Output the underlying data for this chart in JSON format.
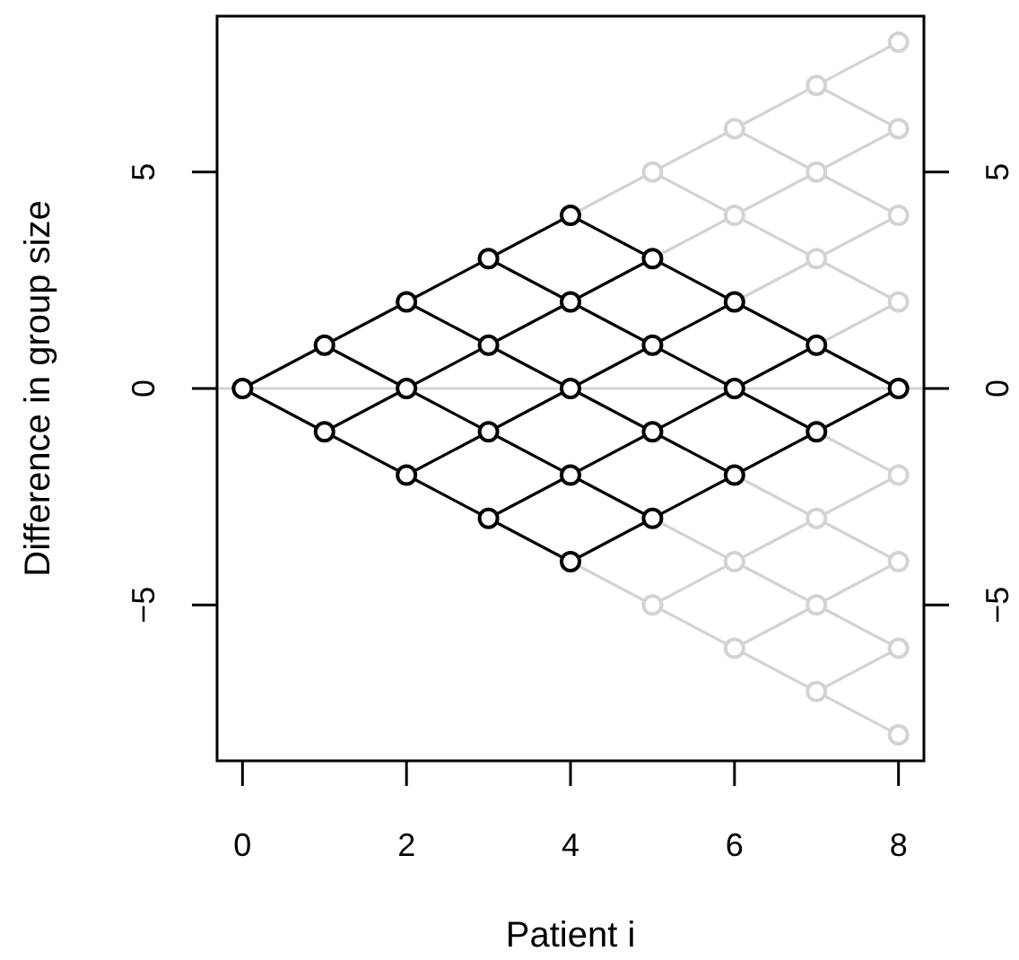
{
  "chart_data": {
    "type": "line",
    "xlabel": "Patient i",
    "ylabel": "Difference in group size",
    "xlim": [
      -0.31,
      8.31
    ],
    "xticks": [
      0,
      2,
      4,
      6,
      8
    ],
    "ylim": [
      -8.6,
      8.6
    ],
    "yticks": [
      -5,
      0,
      5
    ],
    "y2lim": [
      -8.6,
      8.6
    ],
    "y2ticks": [
      -5,
      0,
      5
    ],
    "ref_lines": [
      {
        "axis": "y",
        "value": 0,
        "color": "#d3d3d3"
      }
    ],
    "series": [
      {
        "type": "line",
        "color": "#d3d3d3",
        "marker": "none",
        "x": [
          4,
          5,
          6,
          7,
          8
        ],
        "values": [
          4,
          5,
          6,
          7,
          8
        ]
      },
      {
        "type": "line",
        "color": "#d3d3d3",
        "marker": "none",
        "x": [
          5,
          6,
          7,
          8
        ],
        "values": [
          3,
          4,
          5,
          6
        ]
      },
      {
        "type": "line",
        "color": "#d3d3d3",
        "marker": "none",
        "x": [
          6,
          7,
          8
        ],
        "values": [
          2,
          3,
          4
        ]
      },
      {
        "type": "line",
        "color": "#d3d3d3",
        "marker": "none",
        "x": [
          7,
          8
        ],
        "values": [
          1,
          2
        ]
      },
      {
        "type": "line",
        "color": "#d3d3d3",
        "marker": "none",
        "x": [
          5,
          6,
          7,
          8
        ],
        "values": [
          -5,
          -4,
          -3,
          -2
        ]
      },
      {
        "type": "line",
        "color": "#d3d3d3",
        "marker": "none",
        "x": [
          6,
          7,
          8
        ],
        "values": [
          -6,
          -5,
          -4
        ]
      },
      {
        "type": "line",
        "color": "#d3d3d3",
        "marker": "none",
        "x": [
          7,
          8
        ],
        "values": [
          -7,
          -6
        ]
      },
      {
        "type": "line",
        "color": "#d3d3d3",
        "marker": "none",
        "x": [
          4,
          5,
          6,
          7,
          8
        ],
        "values": [
          -4,
          -5,
          -6,
          -7,
          -8
        ]
      },
      {
        "type": "line",
        "color": "#d3d3d3",
        "marker": "none",
        "x": [
          5,
          6,
          7,
          8
        ],
        "values": [
          -3,
          -4,
          -5,
          -6
        ]
      },
      {
        "type": "line",
        "color": "#d3d3d3",
        "marker": "none",
        "x": [
          6,
          7,
          8
        ],
        "values": [
          -2,
          -3,
          -4
        ]
      },
      {
        "type": "line",
        "color": "#d3d3d3",
        "marker": "none",
        "x": [
          7,
          8
        ],
        "values": [
          -1,
          -2
        ]
      },
      {
        "type": "line",
        "color": "#d3d3d3",
        "marker": "none",
        "x": [
          5,
          6,
          7,
          8
        ],
        "values": [
          5,
          4,
          3,
          2
        ]
      },
      {
        "type": "line",
        "color": "#d3d3d3",
        "marker": "none",
        "x": [
          6,
          7,
          8
        ],
        "values": [
          6,
          5,
          4
        ]
      },
      {
        "type": "line",
        "color": "#d3d3d3",
        "marker": "none",
        "x": [
          7,
          8
        ],
        "values": [
          7,
          6
        ]
      },
      {
        "type": "line",
        "color": "#000000",
        "marker": "none",
        "x": [
          0,
          1,
          2,
          3,
          4
        ],
        "values": [
          0,
          1,
          2,
          3,
          4
        ]
      },
      {
        "type": "line",
        "color": "#000000",
        "marker": "none",
        "x": [
          1,
          2,
          3,
          4,
          5
        ],
        "values": [
          -1,
          0,
          1,
          2,
          3
        ]
      },
      {
        "type": "line",
        "color": "#000000",
        "marker": "none",
        "x": [
          2,
          3,
          4,
          5,
          6
        ],
        "values": [
          -2,
          -1,
          0,
          1,
          2
        ]
      },
      {
        "type": "line",
        "color": "#000000",
        "marker": "none",
        "x": [
          3,
          4,
          5,
          6,
          7
        ],
        "values": [
          -3,
          -2,
          -1,
          0,
          1
        ]
      },
      {
        "type": "line",
        "color": "#000000",
        "marker": "none",
        "x": [
          4,
          5,
          6,
          7,
          8
        ],
        "values": [
          -4,
          -3,
          -2,
          -1,
          0
        ]
      },
      {
        "type": "line",
        "color": "#000000",
        "marker": "none",
        "x": [
          0,
          1,
          2,
          3,
          4
        ],
        "values": [
          0,
          -1,
          -2,
          -3,
          -4
        ]
      },
      {
        "type": "line",
        "color": "#000000",
        "marker": "none",
        "x": [
          1,
          2,
          3,
          4,
          5
        ],
        "values": [
          1,
          0,
          -1,
          -2,
          -3
        ]
      },
      {
        "type": "line",
        "color": "#000000",
        "marker": "none",
        "x": [
          2,
          3,
          4,
          5,
          6
        ],
        "values": [
          2,
          1,
          0,
          -1,
          -2
        ]
      },
      {
        "type": "line",
        "color": "#000000",
        "marker": "none",
        "x": [
          3,
          4,
          5,
          6,
          7
        ],
        "values": [
          3,
          2,
          1,
          0,
          -1
        ]
      },
      {
        "type": "line",
        "color": "#000000",
        "marker": "none",
        "x": [
          4,
          5,
          6,
          7,
          8
        ],
        "values": [
          4,
          3,
          2,
          1,
          0
        ]
      },
      {
        "type": "scatter",
        "color": "#d3d3d3",
        "marker": "circle",
        "x": [
          5,
          5,
          6,
          6,
          6,
          6,
          7,
          7,
          7,
          7,
          7,
          7,
          8,
          8,
          8,
          8,
          8,
          8,
          8,
          8
        ],
        "values": [
          5,
          -5,
          4,
          -4,
          6,
          -6,
          3,
          -3,
          5,
          -5,
          7,
          -7,
          2,
          -2,
          4,
          -4,
          6,
          -6,
          8,
          -8
        ]
      },
      {
        "type": "scatter",
        "color": "#000000",
        "marker": "circle",
        "x": [
          0,
          1,
          1,
          2,
          2,
          2,
          3,
          3,
          3,
          3,
          4,
          4,
          4,
          4,
          4,
          5,
          5,
          5,
          5,
          6,
          6,
          6,
          7,
          7,
          8
        ],
        "values": [
          0,
          -1,
          1,
          -2,
          0,
          2,
          -3,
          -1,
          1,
          3,
          -4,
          -2,
          0,
          2,
          4,
          -3,
          -1,
          1,
          3,
          -2,
          0,
          2,
          -1,
          1,
          0
        ]
      }
    ]
  }
}
